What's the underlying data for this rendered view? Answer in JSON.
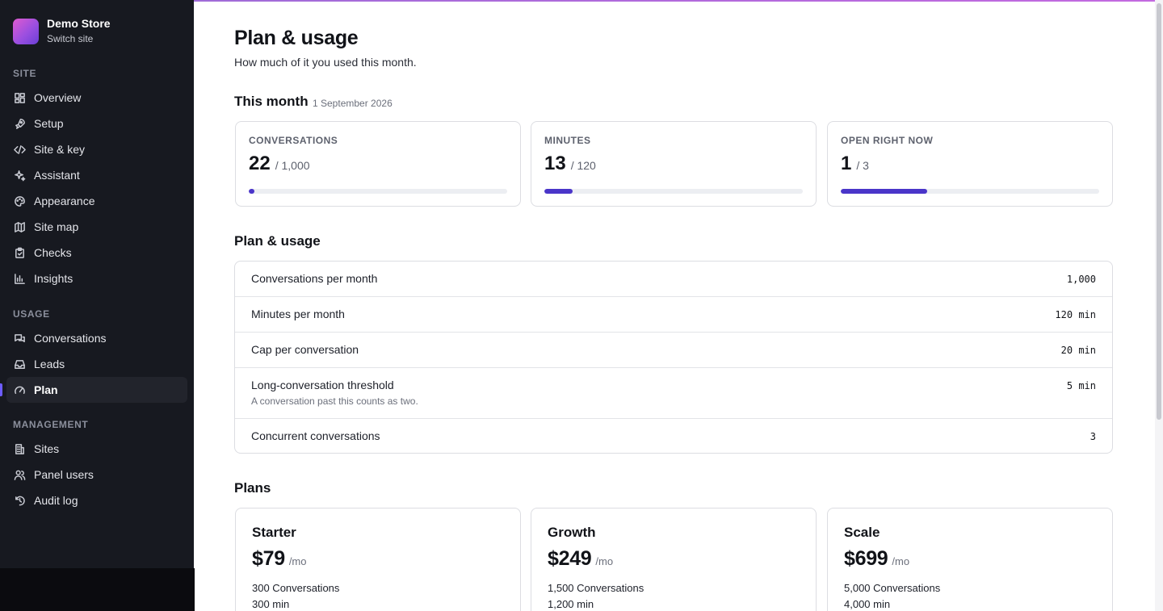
{
  "store": {
    "name": "Demo Store",
    "switch_label": "Switch site"
  },
  "sidebar": {
    "sections": [
      {
        "label": "SITE",
        "items": [
          {
            "label": "Overview",
            "icon": "grid-icon"
          },
          {
            "label": "Setup",
            "icon": "rocket-icon"
          },
          {
            "label": "Site & key",
            "icon": "code-icon"
          },
          {
            "label": "Assistant",
            "icon": "sparkle-icon"
          },
          {
            "label": "Appearance",
            "icon": "palette-icon"
          },
          {
            "label": "Site map",
            "icon": "map-icon"
          },
          {
            "label": "Checks",
            "icon": "clipboard-check-icon"
          },
          {
            "label": "Insights",
            "icon": "bar-chart-icon"
          }
        ]
      },
      {
        "label": "USAGE",
        "items": [
          {
            "label": "Conversations",
            "icon": "chat-icon"
          },
          {
            "label": "Leads",
            "icon": "inbox-icon"
          },
          {
            "label": "Plan",
            "icon": "gauge-icon",
            "active": true
          }
        ]
      },
      {
        "label": "MANAGEMENT",
        "items": [
          {
            "label": "Sites",
            "icon": "building-icon"
          },
          {
            "label": "Panel users",
            "icon": "users-icon"
          },
          {
            "label": "Audit log",
            "icon": "history-icon"
          }
        ]
      }
    ]
  },
  "page": {
    "title": "Plan & usage",
    "subtitle": "How much of it you used this month."
  },
  "this_month": {
    "heading": "This month",
    "date": "1 September 2026",
    "stats": [
      {
        "label": "CONVERSATIONS",
        "value": "22",
        "max": "/ 1,000",
        "fraction": 0.022
      },
      {
        "label": "MINUTES",
        "value": "13",
        "max": "/ 120",
        "fraction": 0.108
      },
      {
        "label": "OPEN RIGHT NOW",
        "value": "1",
        "max": "/ 3",
        "fraction": 0.333
      }
    ]
  },
  "plan_usage": {
    "heading": "Plan & usage",
    "rows": [
      {
        "label": "Conversations per month",
        "value": "1,000"
      },
      {
        "label": "Minutes per month",
        "value": "120 min"
      },
      {
        "label": "Cap per conversation",
        "value": "20 min"
      },
      {
        "label": "Long-conversation threshold",
        "value": "5 min",
        "hint": "A conversation past this counts as two."
      },
      {
        "label": "Concurrent conversations",
        "value": "3"
      }
    ]
  },
  "plans": {
    "heading": "Plans",
    "items": [
      {
        "name": "Starter",
        "price": "$79",
        "period": "/mo",
        "features": [
          "300 Conversations",
          "300 min"
        ]
      },
      {
        "name": "Growth",
        "price": "$249",
        "period": "/mo",
        "features": [
          "1,500 Conversations",
          "1,200 min"
        ]
      },
      {
        "name": "Scale",
        "price": "$699",
        "period": "/mo",
        "features": [
          "5,000 Conversations",
          "4,000 min"
        ]
      }
    ]
  },
  "colors": {
    "accent": "#4a35c9",
    "sidebar_bg": "#171920",
    "active_indicator": "#6d5cff"
  }
}
